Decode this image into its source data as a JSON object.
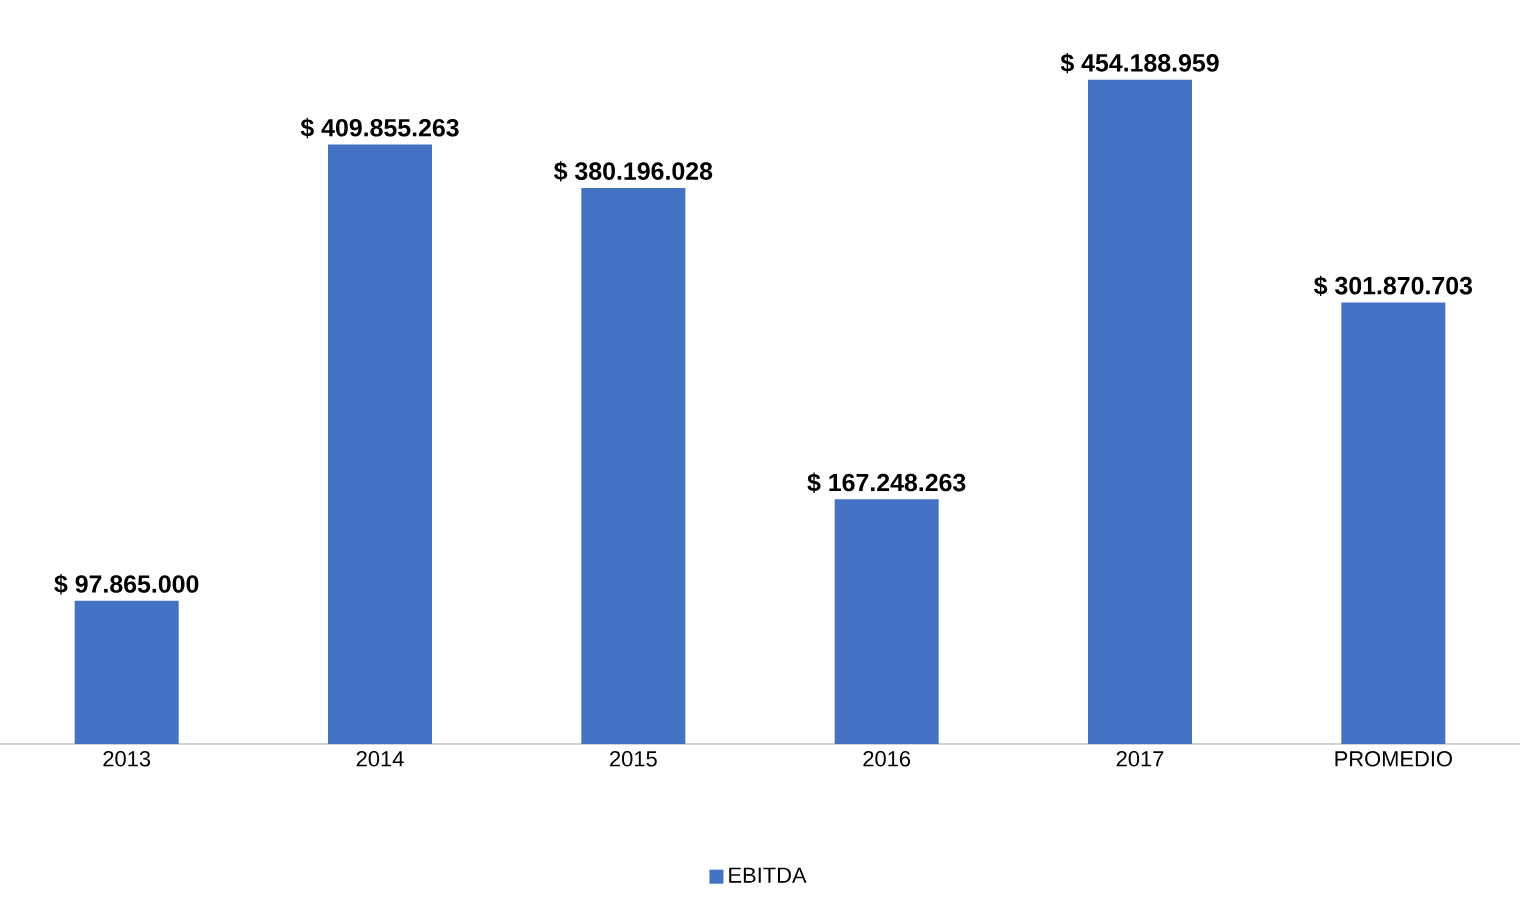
{
  "chart_data": {
    "type": "bar",
    "categories": [
      "2013",
      "2014",
      "2015",
      "2016",
      "2017",
      "PROMEDIO"
    ],
    "series": [
      {
        "name": "EBITDA",
        "color": "#4472c4",
        "values": [
          97865000,
          409855263,
          380196028,
          167248263,
          454188959,
          301870703
        ],
        "value_labels": [
          "$ 97.865.000",
          "$ 409.855.263",
          "$ 380.196.028",
          "$ 167.248.263",
          "$ 454.188.959",
          "$ 301.870.703"
        ]
      }
    ],
    "legend": "bottom",
    "tick_labels": "x"
  }
}
